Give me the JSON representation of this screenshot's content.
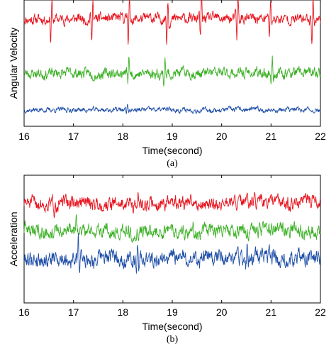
{
  "chart_data": [
    {
      "type": "line",
      "panel_label": "(a)",
      "xlabel": "Time(second)",
      "ylabel": "Angular Velocity",
      "xlim": [
        16,
        22
      ],
      "x_ticks": [
        "16",
        "17",
        "18",
        "19",
        "20",
        "21",
        "22"
      ],
      "y_ticks_shown": false,
      "grid": false,
      "legend": "none",
      "series": [
        {
          "color": "#e8141e",
          "baseline": 0.85,
          "amplitude": 0.045,
          "spike_times": [
            16.55,
            17.38,
            18.12,
            18.9,
            19.58,
            20.32,
            20.98,
            21.84
          ],
          "spike_height": 0.14,
          "seed": 11
        },
        {
          "color": "#3cb026",
          "baseline": 0.42,
          "amplitude": 0.045,
          "spike_times": [
            18.12,
            18.85,
            21.02
          ],
          "spike_height": 0.1,
          "seed": 23
        },
        {
          "color": "#1f4fa8",
          "baseline": 0.13,
          "amplitude": 0.022,
          "spike_times": [
            18.1
          ],
          "spike_height": 0.04,
          "seed": 37
        }
      ]
    },
    {
      "type": "line",
      "panel_label": "(b)",
      "xlabel": "Time(second)",
      "ylabel": "Acceleration",
      "xlim": [
        16,
        22
      ],
      "x_ticks": [
        "16",
        "17",
        "18",
        "19",
        "20",
        "21",
        "22"
      ],
      "y_ticks_shown": false,
      "grid": false,
      "legend": "none",
      "series": [
        {
          "color": "#e8141e",
          "baseline": 0.78,
          "amplitude": 0.06,
          "spike_times": [
            16.62,
            18.3,
            21.82
          ],
          "spike_height": 0.06,
          "seed": 51
        },
        {
          "color": "#3cb026",
          "baseline": 0.57,
          "amplitude": 0.06,
          "spike_times": [
            17.05,
            18.15,
            19.42
          ],
          "spike_height": 0.05,
          "seed": 63
        },
        {
          "color": "#1f4fa8",
          "baseline": 0.35,
          "amplitude": 0.07,
          "spike_times": [
            17.1,
            18.3,
            20.52
          ],
          "spike_height": 0.12,
          "seed": 79
        }
      ]
    }
  ]
}
